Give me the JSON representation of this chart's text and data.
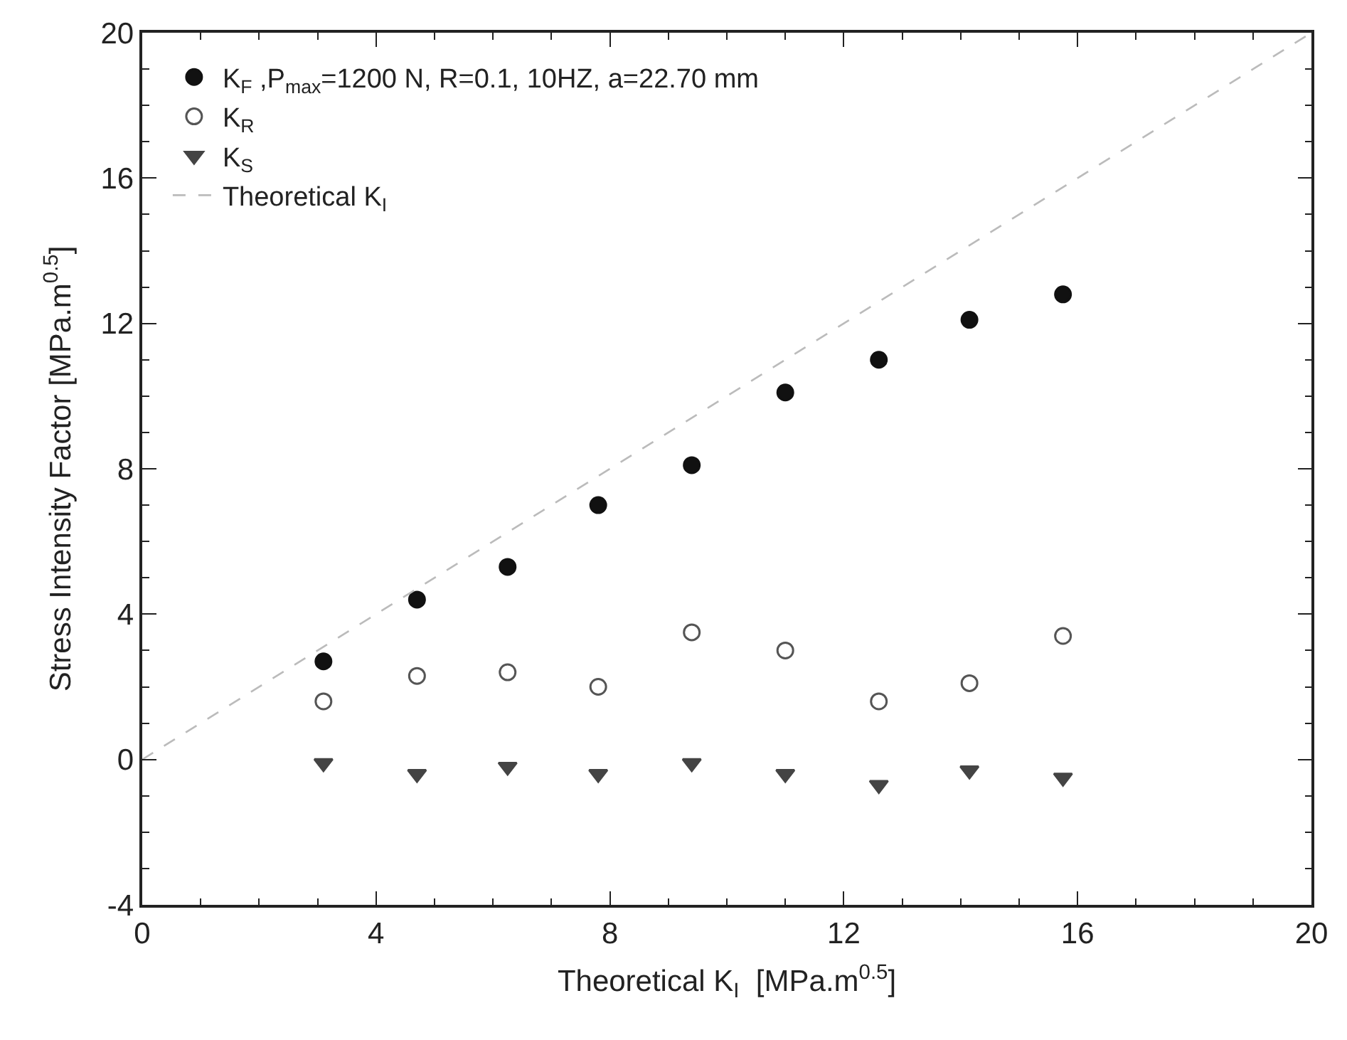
{
  "chart_data": {
    "type": "scatter",
    "xlabel": "Theoretical K$_{I}$  [MPa.m$^{0.5}$]",
    "ylabel": "Stress Intensity Factor [MPa.m$^{0.5}$]",
    "x": [
      3.1,
      4.7,
      6.25,
      7.8,
      9.4,
      11.0,
      12.6,
      14.15,
      15.75
    ],
    "series": [
      {
        "name": "K$_{F}$ ,P$_{max}$=1200 N, R=0.1, 10HZ, a=22.70 mm",
        "color": "#111111",
        "marker": "circle",
        "values": [
          2.7,
          4.4,
          5.3,
          7.0,
          8.1,
          10.1,
          11.0,
          12.1,
          12.8
        ]
      },
      {
        "name": "K$_{R}$",
        "color": "#555555",
        "marker": "circle-open",
        "values": [
          1.6,
          2.3,
          2.4,
          2.0,
          3.5,
          3.0,
          1.6,
          2.1,
          3.4
        ]
      },
      {
        "name": "K$_{S}$",
        "color": "#444444",
        "marker": "triangle-down",
        "values": [
          -0.1,
          -0.4,
          -0.2,
          -0.4,
          -0.1,
          -0.4,
          -0.7,
          -0.3,
          -0.5
        ]
      },
      {
        "name": "Theoretical K$_{I}$",
        "type": "line",
        "color": "#bbbbbb",
        "line_style": "dashed",
        "marker": "none",
        "x": [
          0,
          20
        ],
        "values": [
          0,
          20
        ]
      }
    ],
    "xlim": [
      0,
      20
    ],
    "xticks": [
      0,
      4,
      8,
      12,
      16,
      20
    ],
    "ylim": [
      -4,
      20
    ],
    "yticks": [
      -4,
      0,
      4,
      8,
      12,
      16,
      20
    ],
    "legend": "top left"
  }
}
